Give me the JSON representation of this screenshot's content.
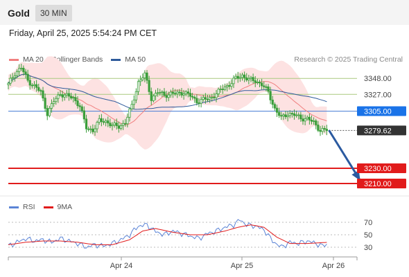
{
  "header": {
    "instrument": "Gold",
    "period": "30 MIN",
    "datetime": "Friday, April 25, 2025 5:54:24 PM CET",
    "credit": "Research © 2025 Trading Central"
  },
  "colors": {
    "candle": "#3a9e3a",
    "ma20": "#f08080",
    "bollinger_fill": "#fde2e2",
    "ma50": "#2e5a9b",
    "pivot_line": "#4a7fd6",
    "resistance_line": "#a9c97f",
    "support_line": "#e11b1b",
    "pivot_tag": "#1a73e8",
    "last_tag": "#333333",
    "support_tag": "#e11b1b",
    "rsi": "#5b84d6",
    "rsi_ma": "#e11b1b",
    "arrow": "#2b5aa0"
  },
  "chart_data": [
    {
      "type": "candlestick",
      "legend": [
        {
          "name": "MA 20 + Bollinger Bands"
        },
        {
          "name": "MA 50"
        }
      ],
      "legend_position": "top-left",
      "xticks": [
        "Apr 24",
        "Apr 25",
        "Apr 26"
      ],
      "ylim": [
        3200,
        3360
      ],
      "levels": [
        {
          "label": "3348.00",
          "value": 3348,
          "kind": "resistance"
        },
        {
          "label": "3327.00",
          "value": 3327,
          "kind": "resistance"
        },
        {
          "label": "3305.00",
          "value": 3305,
          "kind": "pivot"
        },
        {
          "label": "3279.62",
          "value": 3279.62,
          "kind": "last"
        },
        {
          "label": "3230.00",
          "value": 3230,
          "kind": "support"
        },
        {
          "label": "3210.00",
          "value": 3210,
          "kind": "support"
        }
      ],
      "close_path": [
        [
          0,
          3340
        ],
        [
          3,
          3355
        ],
        [
          6,
          3362
        ],
        [
          9,
          3345
        ],
        [
          12,
          3338
        ],
        [
          15,
          3330
        ],
        [
          18,
          3302
        ],
        [
          21,
          3318
        ],
        [
          24,
          3328
        ],
        [
          27,
          3325
        ],
        [
          30,
          3322
        ],
        [
          33,
          3312
        ],
        [
          36,
          3283
        ],
        [
          39,
          3280
        ],
        [
          42,
          3292
        ],
        [
          45,
          3292
        ],
        [
          48,
          3286
        ],
        [
          51,
          3285
        ],
        [
          54,
          3290
        ],
        [
          57,
          3312
        ],
        [
          60,
          3343
        ],
        [
          63,
          3353
        ],
        [
          66,
          3322
        ],
        [
          69,
          3330
        ],
        [
          72,
          3326
        ],
        [
          75,
          3328
        ],
        [
          78,
          3328
        ],
        [
          81,
          3330
        ],
        [
          84,
          3325
        ],
        [
          87,
          3318
        ],
        [
          90,
          3320
        ],
        [
          93,
          3322
        ],
        [
          96,
          3328
        ],
        [
          99,
          3335
        ],
        [
          102,
          3340
        ],
        [
          105,
          3348
        ],
        [
          108,
          3352
        ],
        [
          111,
          3346
        ],
        [
          114,
          3345
        ],
        [
          117,
          3340
        ],
        [
          120,
          3330
        ],
        [
          123,
          3308
        ],
        [
          126,
          3296
        ],
        [
          129,
          3302
        ],
        [
          132,
          3300
        ],
        [
          135,
          3296
        ],
        [
          138,
          3295
        ],
        [
          141,
          3290
        ],
        [
          144,
          3280
        ],
        [
          147,
          3280
        ]
      ],
      "forecast_arrow": {
        "from": [
          148,
          3280
        ],
        "to": [
          162,
          3216
        ]
      }
    },
    {
      "type": "line",
      "legend": [
        {
          "name": "RSI"
        },
        {
          "name": "9MA"
        }
      ],
      "yticks": [
        70,
        50,
        30
      ],
      "ylim": [
        20,
        80
      ],
      "rsi": [
        [
          0,
          32
        ],
        [
          4,
          38
        ],
        [
          8,
          44
        ],
        [
          12,
          40
        ],
        [
          16,
          42
        ],
        [
          20,
          38
        ],
        [
          24,
          44
        ],
        [
          28,
          40
        ],
        [
          32,
          36
        ],
        [
          36,
          30
        ],
        [
          40,
          34
        ],
        [
          44,
          32
        ],
        [
          48,
          36
        ],
        [
          52,
          42
        ],
        [
          56,
          50
        ],
        [
          60,
          64
        ],
        [
          64,
          66
        ],
        [
          68,
          55
        ],
        [
          72,
          50
        ],
        [
          76,
          56
        ],
        [
          80,
          52
        ],
        [
          84,
          48
        ],
        [
          88,
          44
        ],
        [
          92,
          52
        ],
        [
          96,
          56
        ],
        [
          100,
          62
        ],
        [
          104,
          66
        ],
        [
          107,
          74
        ],
        [
          110,
          66
        ],
        [
          114,
          64
        ],
        [
          118,
          58
        ],
        [
          122,
          40
        ],
        [
          126,
          30
        ],
        [
          130,
          38
        ],
        [
          134,
          36
        ],
        [
          138,
          40
        ],
        [
          142,
          36
        ],
        [
          145,
          32
        ],
        [
          148,
          36
        ]
      ],
      "ma9": [
        [
          0,
          34
        ],
        [
          8,
          38
        ],
        [
          16,
          40
        ],
        [
          24,
          40
        ],
        [
          32,
          38
        ],
        [
          40,
          34
        ],
        [
          48,
          34
        ],
        [
          56,
          42
        ],
        [
          62,
          56
        ],
        [
          68,
          60
        ],
        [
          76,
          54
        ],
        [
          84,
          50
        ],
        [
          92,
          50
        ],
        [
          100,
          56
        ],
        [
          106,
          62
        ],
        [
          112,
          66
        ],
        [
          118,
          62
        ],
        [
          124,
          46
        ],
        [
          130,
          36
        ],
        [
          138,
          36
        ],
        [
          148,
          38
        ]
      ]
    }
  ]
}
